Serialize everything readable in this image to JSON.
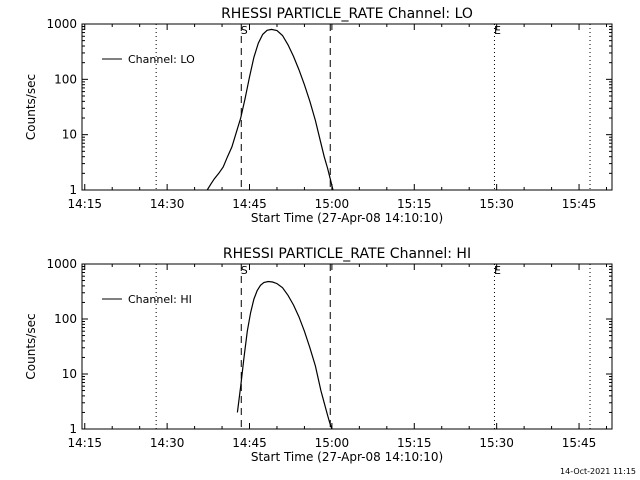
{
  "footer_timestamp": "14-Oct-2021 11:15",
  "chart_data": [
    {
      "type": "line",
      "title": "RHESSI PARTICLE_RATE Channel: LO",
      "xlabel": "Start Time (27-Apr-08 14:10:10)",
      "ylabel": "Counts/sec",
      "y_scale": "log",
      "ylim": [
        1,
        1000
      ],
      "xlim_minutes": [
        14.5,
        111
      ],
      "x_ticks": [
        {
          "v": 15,
          "label": "14:15"
        },
        {
          "v": 30,
          "label": "14:30"
        },
        {
          "v": 45,
          "label": "14:45"
        },
        {
          "v": 60,
          "label": "15:00"
        },
        {
          "v": 75,
          "label": "15:15"
        },
        {
          "v": 90,
          "label": "15:30"
        },
        {
          "v": 105,
          "label": "15:45"
        }
      ],
      "y_ticks": [
        {
          "v": 1,
          "label": "1"
        },
        {
          "v": 10,
          "label": "10"
        },
        {
          "v": 100,
          "label": "100"
        },
        {
          "v": 1000,
          "label": "1000"
        }
      ],
      "legend": {
        "label": "Channel: LO",
        "placement": "top-left"
      },
      "markers": [
        {
          "x": 43.5,
          "label": "S"
        },
        {
          "x": 89.6,
          "label": "E"
        }
      ],
      "dashed_lines_x": [
        43.5,
        59.7
      ],
      "dotted_lines_x": [
        28.0,
        89.6,
        107.0
      ],
      "series": [
        {
          "x": [
            37.3,
            38.0,
            38.6,
            39.4,
            40.2,
            41.0,
            41.8,
            42.6,
            43.4,
            44.2,
            45.0,
            45.8,
            46.6,
            47.4,
            48.2,
            49.0,
            50.0,
            51.0,
            52.0,
            53.0,
            54.0,
            55.0,
            56.0,
            57.0,
            58.0,
            58.6,
            59.2,
            59.7,
            60.0,
            60.2
          ],
          "y": [
            1,
            1.3,
            1.6,
            2.0,
            2.6,
            4.0,
            6.0,
            11,
            20,
            45,
            110,
            250,
            450,
            650,
            770,
            800,
            760,
            620,
            420,
            260,
            150,
            80,
            40,
            18,
            7,
            4,
            2.5,
            1.6,
            1.2,
            1
          ]
        }
      ]
    },
    {
      "type": "line",
      "title": "RHESSI PARTICLE_RATE Channel: HI",
      "xlabel": "Start Time (27-Apr-08 14:10:10)",
      "ylabel": "Counts/sec",
      "y_scale": "log",
      "ylim": [
        1,
        1000
      ],
      "xlim_minutes": [
        14.5,
        111
      ],
      "x_ticks": [
        {
          "v": 15,
          "label": "14:15"
        },
        {
          "v": 30,
          "label": "14:30"
        },
        {
          "v": 45,
          "label": "14:45"
        },
        {
          "v": 60,
          "label": "15:00"
        },
        {
          "v": 75,
          "label": "15:15"
        },
        {
          "v": 90,
          "label": "15:30"
        },
        {
          "v": 105,
          "label": "15:45"
        }
      ],
      "y_ticks": [
        {
          "v": 1,
          "label": "1"
        },
        {
          "v": 10,
          "label": "10"
        },
        {
          "v": 100,
          "label": "100"
        },
        {
          "v": 1000,
          "label": "1000"
        }
      ],
      "legend": {
        "label": "Channel: HI",
        "placement": "top-left"
      },
      "markers": [
        {
          "x": 43.5,
          "label": "S"
        },
        {
          "x": 89.6,
          "label": "E"
        }
      ],
      "dashed_lines_x": [
        43.5,
        59.7
      ],
      "dotted_lines_x": [
        28.0,
        89.6,
        107.0
      ],
      "series": [
        {
          "x": [
            42.8,
            43.4,
            44.0,
            44.6,
            45.2,
            45.8,
            46.4,
            47.0,
            47.6,
            48.4,
            49.2,
            50.0,
            51.0,
            52.0,
            53.0,
            54.0,
            55.0,
            56.0,
            57.0,
            58.0,
            58.6,
            59.2,
            59.6,
            60.0
          ],
          "y": [
            2.0,
            6.0,
            20,
            60,
            130,
            230,
            330,
            410,
            460,
            480,
            470,
            440,
            370,
            270,
            180,
            110,
            60,
            30,
            14,
            5,
            3,
            1.8,
            1.3,
            1
          ]
        }
      ]
    }
  ]
}
